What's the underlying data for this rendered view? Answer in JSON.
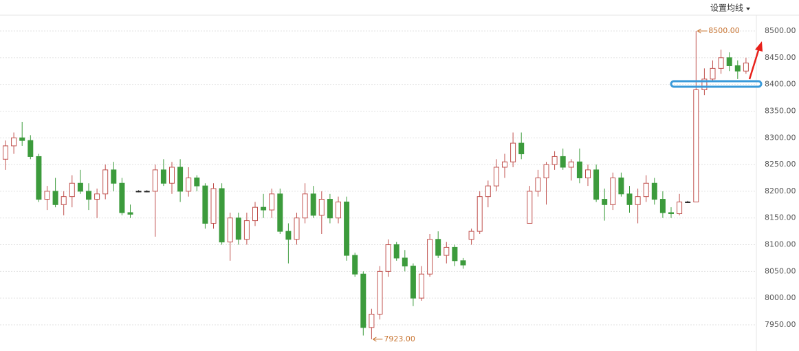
{
  "chart_data": {
    "type": "candlestick",
    "menu": "设置均线",
    "up_color": "#c0504d",
    "down_color": "#3c9b3c",
    "flat_color": "#222222",
    "ylim": [
      7901,
      8558
    ],
    "yticks": [
      {
        "value": 7950,
        "label": "7950.00"
      },
      {
        "value": 8000,
        "label": "8000.00"
      },
      {
        "value": 8050,
        "label": "8050.00"
      },
      {
        "value": 8100,
        "label": "8100.00"
      },
      {
        "value": 8150,
        "label": "8150.00"
      },
      {
        "value": 8200,
        "label": "8200.00"
      },
      {
        "value": 8250,
        "label": "8250.00"
      },
      {
        "value": 8300,
        "label": "8300.00"
      },
      {
        "value": 8350,
        "label": "8350.00"
      },
      {
        "value": 8400,
        "label": "8400.00"
      },
      {
        "value": 8450,
        "label": "8450.00"
      },
      {
        "value": 8500,
        "label": "8500.00"
      }
    ],
    "grid": true,
    "annotations": [
      {
        "label": "8500.00",
        "value": 8500
      },
      {
        "label": "7923.00",
        "value": 7923
      }
    ],
    "candles": [
      [
        8260,
        8295,
        8240,
        8285
      ],
      [
        8285,
        8310,
        8270,
        8300
      ],
      [
        8300,
        8330,
        8285,
        8295
      ],
      [
        8295,
        8305,
        8260,
        8265
      ],
      [
        8265,
        8270,
        8180,
        8185
      ],
      [
        8185,
        8210,
        8165,
        8200
      ],
      [
        8200,
        8225,
        8170,
        8175
      ],
      [
        8175,
        8200,
        8155,
        8190
      ],
      [
        8190,
        8230,
        8170,
        8215
      ],
      [
        8215,
        8240,
        8195,
        8200
      ],
      [
        8200,
        8215,
        8165,
        8185
      ],
      [
        8185,
        8205,
        8150,
        8195
      ],
      [
        8195,
        8250,
        8185,
        8240
      ],
      [
        8240,
        8255,
        8200,
        8215
      ],
      [
        8215,
        8225,
        8155,
        8160
      ],
      [
        8160,
        8175,
        8150,
        8157
      ],
      [
        8200,
        8202,
        8198,
        8200
      ],
      [
        8200,
        8202,
        8198,
        8200
      ],
      [
        8200,
        8250,
        8115,
        8240
      ],
      [
        8240,
        8260,
        8210,
        8215
      ],
      [
        8215,
        8255,
        8195,
        8245
      ],
      [
        8245,
        8260,
        8180,
        8200
      ],
      [
        8200,
        8245,
        8190,
        8225
      ],
      [
        8225,
        8230,
        8200,
        8210
      ],
      [
        8210,
        8215,
        8130,
        8140
      ],
      [
        8140,
        8215,
        8130,
        8205
      ],
      [
        8205,
        8215,
        8100,
        8105
      ],
      [
        8105,
        8160,
        8070,
        8150
      ],
      [
        8150,
        8160,
        8100,
        8110
      ],
      [
        8110,
        8160,
        8100,
        8145
      ],
      [
        8145,
        8180,
        8135,
        8170
      ],
      [
        8170,
        8195,
        8150,
        8165
      ],
      [
        8165,
        8205,
        8150,
        8195
      ],
      [
        8195,
        8205,
        8120,
        8125
      ],
      [
        8125,
        8140,
        8065,
        8110
      ],
      [
        8110,
        8160,
        8100,
        8150
      ],
      [
        8150,
        8215,
        8140,
        8195
      ],
      [
        8195,
        8210,
        8150,
        8155
      ],
      [
        8155,
        8200,
        8120,
        8185
      ],
      [
        8185,
        8195,
        8140,
        8150
      ],
      [
        8150,
        8190,
        8140,
        8180
      ],
      [
        8180,
        8190,
        8070,
        8080
      ],
      [
        8080,
        8085,
        8040,
        8045
      ],
      [
        8045,
        8050,
        7930,
        7945
      ],
      [
        7945,
        7980,
        7923,
        7970
      ],
      [
        7970,
        8060,
        7960,
        8050
      ],
      [
        8050,
        8110,
        8040,
        8100
      ],
      [
        8100,
        8105,
        8070,
        8075
      ],
      [
        8075,
        8090,
        8050,
        8060
      ],
      [
        8060,
        8065,
        7985,
        8000
      ],
      [
        8000,
        8060,
        7995,
        8045
      ],
      [
        8045,
        8120,
        8040,
        8110
      ],
      [
        8110,
        8125,
        8075,
        8080
      ],
      [
        8080,
        8105,
        8065,
        8095
      ],
      [
        8095,
        8100,
        8060,
        8070
      ],
      [
        8070,
        8075,
        8055,
        8062
      ],
      [
        8110,
        8130,
        8100,
        8125
      ],
      [
        8125,
        8200,
        8120,
        8190
      ],
      [
        8190,
        8220,
        8170,
        8210
      ],
      [
        8210,
        8260,
        8200,
        8245
      ],
      [
        8245,
        8270,
        8225,
        8255
      ],
      [
        8255,
        8310,
        8245,
        8290
      ],
      [
        8290,
        8310,
        8260,
        8270
      ],
      [
        8140,
        8210,
        8140,
        8200
      ],
      [
        8200,
        8240,
        8190,
        8225
      ],
      [
        8225,
        8255,
        8175,
        8250
      ],
      [
        8250,
        8275,
        8240,
        8265
      ],
      [
        8265,
        8280,
        8240,
        8245
      ],
      [
        8245,
        8260,
        8220,
        8255
      ],
      [
        8255,
        8280,
        8215,
        8225
      ],
      [
        8225,
        8250,
        8210,
        8240
      ],
      [
        8240,
        8250,
        8180,
        8185
      ],
      [
        8185,
        8205,
        8145,
        8175
      ],
      [
        8175,
        8235,
        8165,
        8225
      ],
      [
        8225,
        8235,
        8190,
        8195
      ],
      [
        8195,
        8210,
        8160,
        8175
      ],
      [
        8175,
        8205,
        8140,
        8190
      ],
      [
        8190,
        8230,
        8180,
        8215
      ],
      [
        8215,
        8225,
        8175,
        8185
      ],
      [
        8185,
        8200,
        8150,
        8160
      ],
      [
        8160,
        8170,
        8150,
        8158
      ],
      [
        8158,
        8195,
        8155,
        8180
      ],
      [
        8180,
        8182,
        8178,
        8180
      ],
      [
        8180,
        8500,
        8180,
        8390
      ],
      [
        8390,
        8430,
        8380,
        8410
      ],
      [
        8410,
        8445,
        8405,
        8430
      ],
      [
        8430,
        8465,
        8420,
        8450
      ],
      [
        8450,
        8460,
        8425,
        8435
      ],
      [
        8435,
        8445,
        8410,
        8425
      ],
      [
        8425,
        8450,
        8420,
        8440
      ]
    ]
  }
}
